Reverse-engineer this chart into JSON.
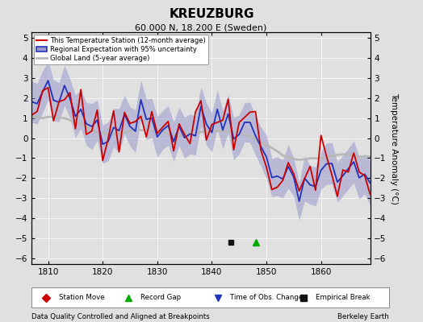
{
  "title": "KREUZBURG",
  "subtitle": "60.000 N, 18.200 E (Sweden)",
  "xlabel_note": "Data Quality Controlled and Aligned at Breakpoints",
  "xlabel_right": "Berkeley Earth",
  "ylabel": "Temperature Anomaly (°C)",
  "xlim": [
    1807,
    1869
  ],
  "ylim": [
    -6.3,
    5.3
  ],
  "yticks": [
    -6,
    -5,
    -4,
    -3,
    -2,
    -1,
    0,
    1,
    2,
    3,
    4,
    5
  ],
  "xticks": [
    1810,
    1820,
    1830,
    1840,
    1850,
    1860
  ],
  "seed": 42,
  "bg_color": "#e0e0e0",
  "plot_bg": "#e0e0e0",
  "red_color": "#cc0000",
  "blue_color": "#2233bb",
  "shade_color": "#9999cc",
  "gray_color": "#b8b8b8",
  "legend_label_station": "This Temperature Station (12-month average)",
  "legend_label_regional": "Regional Expectation with 95% uncertainty",
  "legend_label_global": "Global Land (5-year average)",
  "marker_legend": [
    {
      "symbol": "D",
      "color": "#cc0000",
      "label": "Station Move"
    },
    {
      "symbol": "^",
      "color": "#00aa00",
      "label": "Record Gap"
    },
    {
      "symbol": "v",
      "color": "#2233bb",
      "label": "Time of Obs. Change"
    },
    {
      "symbol": "s",
      "color": "#111111",
      "label": "Empirical Break"
    }
  ],
  "empirical_break_x": 1843.5,
  "record_gap_x": 1848.0
}
